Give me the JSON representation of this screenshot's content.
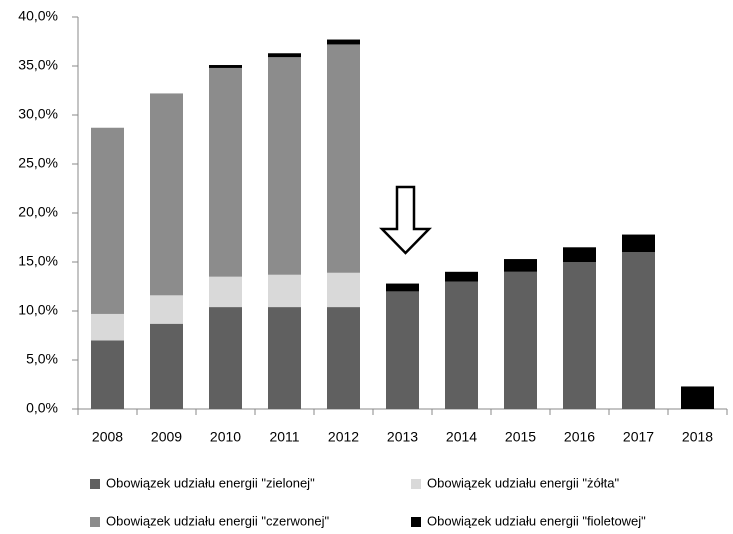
{
  "chart_data": {
    "type": "stacked_bar",
    "categories": [
      "2008",
      "2009",
      "2010",
      "2011",
      "2012",
      "2013",
      "2014",
      "2015",
      "2016",
      "2017",
      "2018"
    ],
    "series": [
      {
        "name": "Obowiązek  udziału energii \"zielonej\"",
        "color": "#606060",
        "values": [
          7.0,
          8.7,
          10.4,
          10.4,
          10.4,
          12.0,
          13.0,
          14.0,
          15.0,
          16.0,
          0
        ]
      },
      {
        "name": "Obowiązek  udziału energii \"żółta\"",
        "color": "#d9d9d9",
        "values": [
          2.7,
          2.9,
          3.1,
          3.3,
          3.5,
          0,
          0,
          0,
          0,
          0,
          0
        ]
      },
      {
        "name": "Obowiązek  udziału energii \"czerwonej\"",
        "color": "#8c8c8c",
        "values": [
          19.0,
          20.6,
          21.3,
          22.2,
          23.3,
          0,
          0,
          0,
          0,
          0,
          0
        ]
      },
      {
        "name": "Obowiązek  udziału energii \"fioletowej\"",
        "color": "#000000",
        "values": [
          0,
          0,
          0.3,
          0.4,
          0.5,
          0.8,
          1.0,
          1.3,
          1.5,
          1.8,
          2.3
        ]
      }
    ],
    "ylim": [
      0,
      40
    ],
    "yticks": [
      {
        "value": 0,
        "label": "0,0%"
      },
      {
        "value": 5,
        "label": "5,0%"
      },
      {
        "value": 10,
        "label": "10,0%"
      },
      {
        "value": 15,
        "label": "15,0%"
      },
      {
        "value": 20,
        "label": "20,0%"
      },
      {
        "value": 25,
        "label": "25,0%"
      },
      {
        "value": 30,
        "label": "30,0%"
      },
      {
        "value": 35,
        "label": "35,0%"
      },
      {
        "value": 40,
        "label": "40,0%"
      }
    ],
    "grid": false,
    "legend": "bottom"
  }
}
